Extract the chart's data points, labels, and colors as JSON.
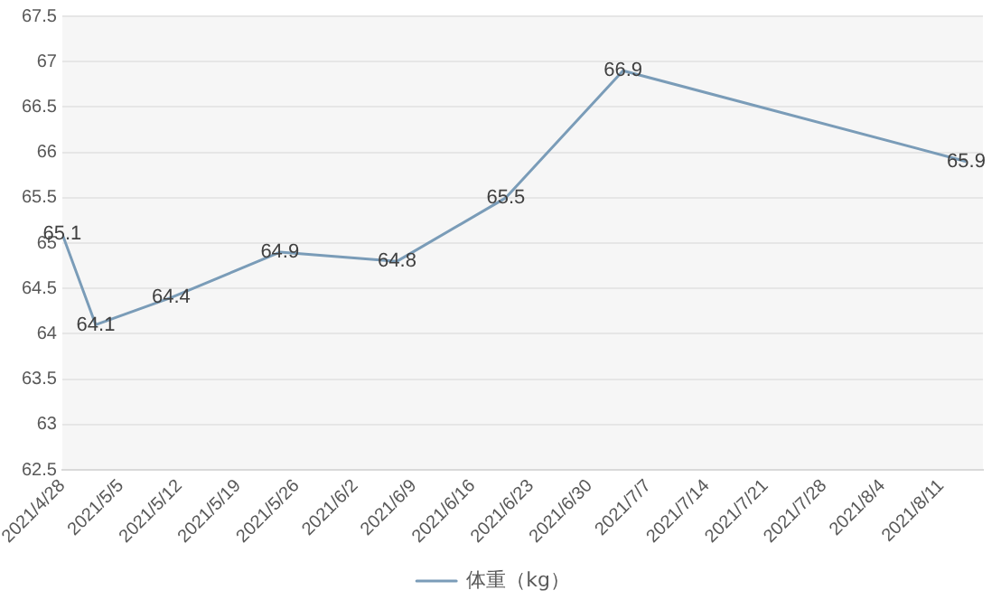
{
  "chart_data": {
    "type": "line",
    "legend": "bottom",
    "grid": "y",
    "data_labels": true,
    "marker": "none",
    "line_style": "solid",
    "xlim": [
      "2021-04-28",
      "2021-08-16"
    ],
    "xticks": [
      {
        "value": "2021-04-28",
        "label": "2021/4/28"
      },
      {
        "value": "2021-05-05",
        "label": "2021/5/5"
      },
      {
        "value": "2021-05-12",
        "label": "2021/5/12"
      },
      {
        "value": "2021-05-19",
        "label": "2021/5/19"
      },
      {
        "value": "2021-05-26",
        "label": "2021/5/26"
      },
      {
        "value": "2021-06-02",
        "label": "2021/6/2"
      },
      {
        "value": "2021-06-09",
        "label": "2021/6/9"
      },
      {
        "value": "2021-06-16",
        "label": "2021/6/16"
      },
      {
        "value": "2021-06-23",
        "label": "2021/6/23"
      },
      {
        "value": "2021-06-30",
        "label": "2021/6/30"
      },
      {
        "value": "2021-07-07",
        "label": "2021/7/7"
      },
      {
        "value": "2021-07-14",
        "label": "2021/7/14"
      },
      {
        "value": "2021-07-21",
        "label": "2021/7/21"
      },
      {
        "value": "2021-07-28",
        "label": "2021/7/28"
      },
      {
        "value": "2021-08-04",
        "label": "2021/8/4"
      },
      {
        "value": "2021-08-11",
        "label": "2021/8/11"
      }
    ],
    "ylim": [
      62.5,
      67.5
    ],
    "yticks": [
      62.5,
      63,
      63.5,
      64,
      64.5,
      65,
      65.5,
      66,
      66.5,
      67,
      67.5
    ],
    "x": [
      "2021-04-28",
      "2021-05-02",
      "2021-05-11",
      "2021-05-24",
      "2021-06-07",
      "2021-06-20",
      "2021-07-04",
      "2021-08-14"
    ],
    "series": [
      {
        "name": "体重（kg）",
        "color": "#7a9cb8",
        "values": [
          65.1,
          64.1,
          64.4,
          64.9,
          64.8,
          65.5,
          66.9,
          65.9
        ]
      }
    ]
  }
}
